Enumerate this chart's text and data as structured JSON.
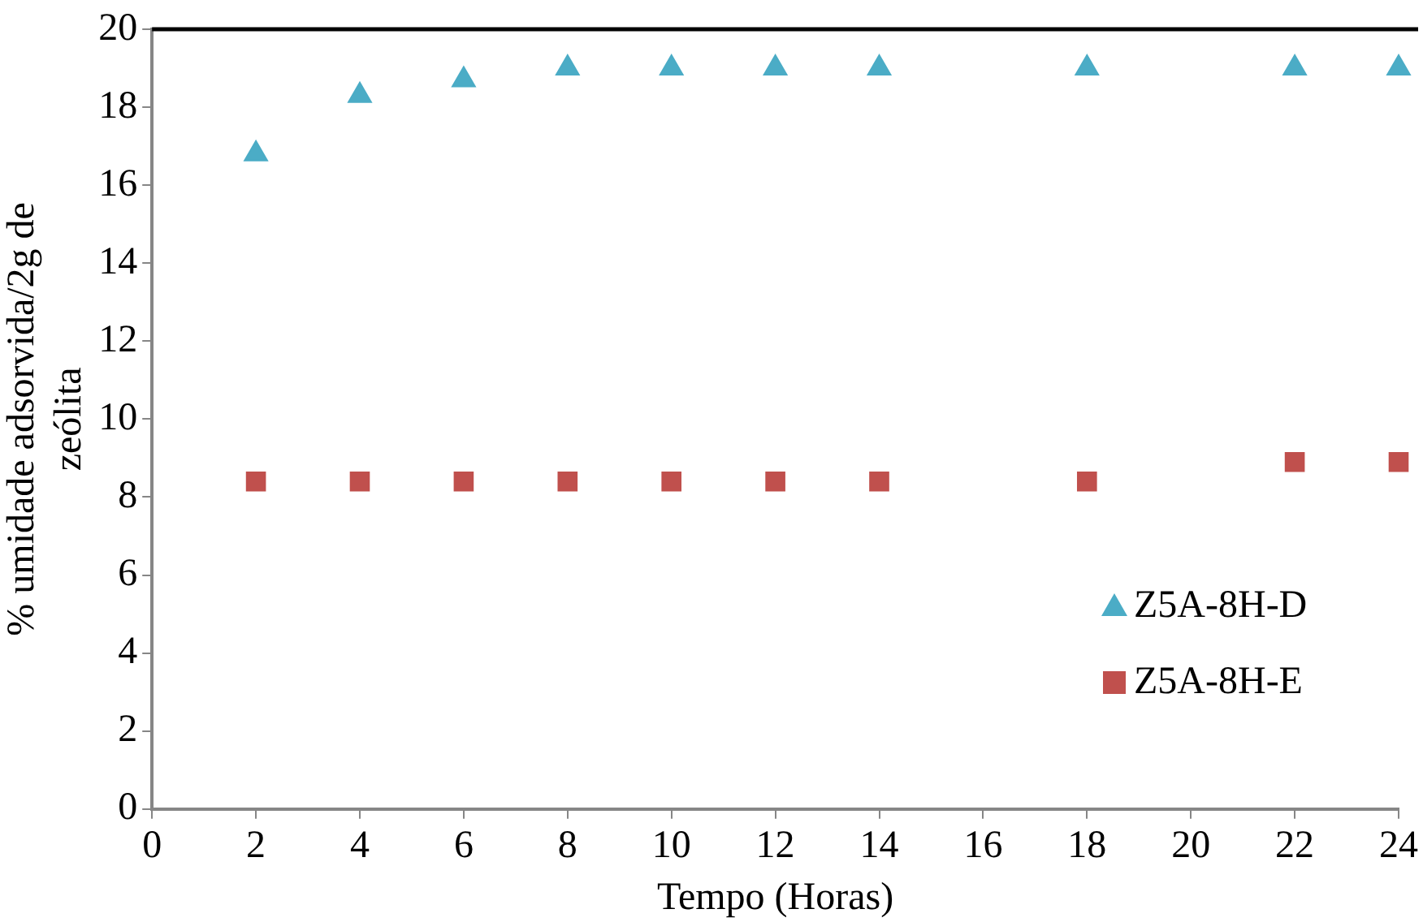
{
  "chart_data": {
    "type": "scatter",
    "xlabel": "Tempo (Horas)",
    "ylabel": "% umidade adsorvida/2g de zeólita",
    "x": [
      2,
      4,
      6,
      8,
      10,
      12,
      14,
      18,
      22,
      24
    ],
    "series": [
      {
        "name": "Z5A-8H-D",
        "color": "#4bacc6",
        "marker": "triangle",
        "values": [
          16.8,
          18.3,
          18.7,
          19,
          19,
          19,
          19,
          19,
          19,
          19
        ]
      },
      {
        "name": "Z5A-8H-E",
        "color": "#c0504d",
        "marker": "square",
        "values": [
          8.4,
          8.4,
          8.4,
          8.4,
          8.4,
          8.4,
          8.4,
          8.4,
          8.9,
          8.9
        ]
      }
    ],
    "xlim": [
      0,
      24
    ],
    "xticks": [
      0,
      2,
      4,
      6,
      8,
      10,
      12,
      14,
      16,
      18,
      20,
      22,
      24
    ],
    "ylim": [
      0,
      20
    ],
    "yticks": [
      0,
      2,
      4,
      6,
      8,
      10,
      12,
      14,
      16,
      18,
      20
    ],
    "grid": false,
    "legend": "right"
  }
}
